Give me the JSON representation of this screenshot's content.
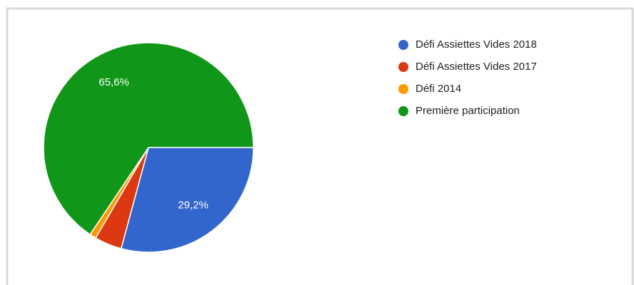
{
  "chart_data": {
    "type": "pie",
    "categories": [
      "Défi Assiettes Vides 2018",
      "Défi Assiettes Vides 2017",
      "Défi 2014",
      "Première participation"
    ],
    "values": [
      29.2,
      4.2,
      1.0,
      65.6
    ],
    "value_labels": [
      "29,2%",
      null,
      null,
      "65,6%"
    ],
    "colors": [
      "#3366cc",
      "#dc3912",
      "#ff9900",
      "#109618"
    ],
    "legend": "right"
  }
}
